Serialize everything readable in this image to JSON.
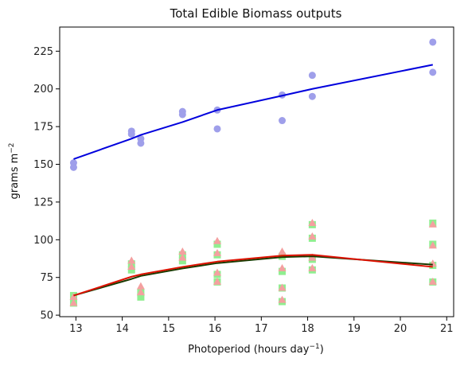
{
  "chart_data": {
    "type": "scatter",
    "title": "Total Edible Biomass outputs",
    "xlabel": {
      "base": "Photoperiod (hours day",
      "sup": "−1",
      "suffix": ")"
    },
    "ylabel": {
      "base": "grams m",
      "sup": "−2"
    },
    "xlim": [
      12.65,
      21.15
    ],
    "ylim": [
      49,
      241
    ],
    "xticks": [
      13,
      14,
      15,
      16,
      17,
      18,
      19,
      20,
      21
    ],
    "yticks": [
      50,
      75,
      100,
      125,
      150,
      175,
      200,
      225
    ],
    "grid": false,
    "scatter_series": [
      {
        "marker": "circle",
        "color": "#9f9fea",
        "points": [
          [
            12.95,
            151
          ],
          [
            12.95,
            148
          ],
          [
            14.2,
            172
          ],
          [
            14.2,
            170
          ],
          [
            14.4,
            167
          ],
          [
            14.4,
            164
          ],
          [
            15.3,
            185
          ],
          [
            15.3,
            183
          ],
          [
            16.05,
            186
          ],
          [
            16.05,
            173.5
          ],
          [
            17.45,
            196
          ],
          [
            17.45,
            179
          ],
          [
            18.1,
            209
          ],
          [
            18.1,
            195
          ],
          [
            20.7,
            231
          ],
          [
            20.7,
            211
          ]
        ]
      },
      {
        "marker": "square",
        "color": "#90ee90",
        "points": [
          [
            12.95,
            63
          ],
          [
            12.95,
            58
          ],
          [
            14.2,
            84
          ],
          [
            14.2,
            80
          ],
          [
            14.4,
            65
          ],
          [
            14.4,
            62
          ],
          [
            15.3,
            90
          ],
          [
            15.3,
            86
          ],
          [
            16.05,
            97
          ],
          [
            16.05,
            90
          ],
          [
            16.05,
            77
          ],
          [
            16.05,
            72
          ],
          [
            17.45,
            89
          ],
          [
            17.45,
            79
          ],
          [
            17.45,
            68
          ],
          [
            17.45,
            59
          ],
          [
            18.1,
            110
          ],
          [
            18.1,
            101
          ],
          [
            18.1,
            87
          ],
          [
            18.1,
            80
          ],
          [
            20.7,
            111
          ],
          [
            20.7,
            97
          ],
          [
            20.7,
            83
          ],
          [
            20.7,
            72
          ]
        ]
      },
      {
        "marker": "triangle",
        "color": "#f4a0a0",
        "points": [
          [
            12.95,
            62
          ],
          [
            12.95,
            58
          ],
          [
            14.2,
            86
          ],
          [
            14.2,
            82
          ],
          [
            14.4,
            69
          ],
          [
            14.4,
            65
          ],
          [
            15.3,
            92
          ],
          [
            15.3,
            88
          ],
          [
            16.05,
            99
          ],
          [
            16.05,
            91
          ],
          [
            16.05,
            78
          ],
          [
            16.05,
            72
          ],
          [
            17.45,
            92
          ],
          [
            17.45,
            81
          ],
          [
            17.45,
            68
          ],
          [
            17.45,
            60
          ],
          [
            18.1,
            111
          ],
          [
            18.1,
            102
          ],
          [
            18.1,
            88
          ],
          [
            18.1,
            81
          ],
          [
            20.7,
            110
          ],
          [
            20.7,
            96
          ],
          [
            20.7,
            84
          ],
          [
            20.7,
            72
          ]
        ]
      }
    ],
    "line_series": [
      {
        "color": "#0000dd",
        "width": 2,
        "x": [
          12.95,
          14.2,
          14.4,
          15.3,
          16.05,
          17.45,
          18.1,
          20.7
        ],
        "y": [
          153.5,
          167,
          169.5,
          178,
          186,
          195.5,
          200,
          216
        ]
      },
      {
        "color": "#1a3a00",
        "width": 2,
        "x": [
          12.95,
          14.2,
          14.4,
          15.3,
          16.05,
          17.45,
          18.1,
          20.7
        ],
        "y": [
          63,
          74,
          76,
          81,
          84.5,
          88.5,
          89,
          83.5
        ]
      },
      {
        "color": "#dd1100",
        "width": 2,
        "x": [
          12.95,
          14.2,
          14.4,
          15.3,
          16.05,
          17.45,
          18.1,
          20.7
        ],
        "y": [
          63,
          75.5,
          77,
          82,
          85.5,
          89.5,
          90,
          82
        ]
      }
    ]
  }
}
